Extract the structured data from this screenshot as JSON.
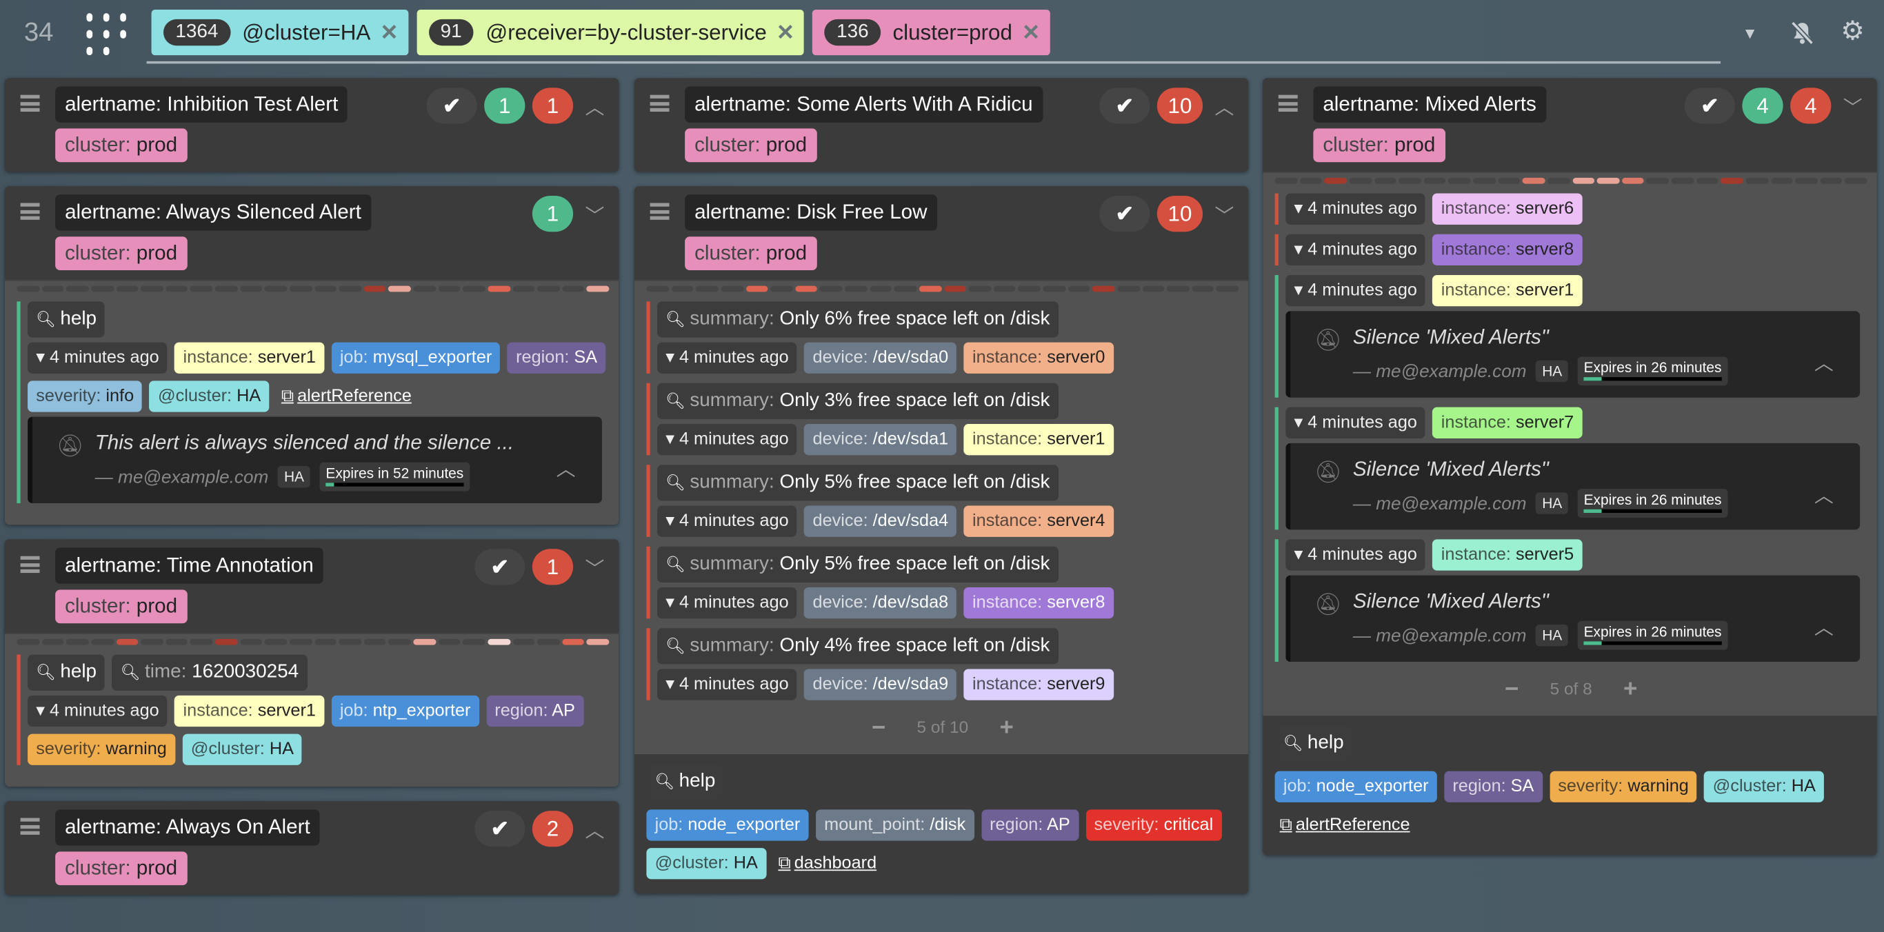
{
  "topbar": {
    "count": "34",
    "filters": [
      {
        "count": "1364",
        "text": "@cluster=HA",
        "color": "#8ddfe2"
      },
      {
        "count": "91",
        "text": "@receiver=by-cluster-service",
        "color": "#dcf7a6"
      },
      {
        "count": "136",
        "text": "cluster=prod",
        "color": "#e78fbb"
      }
    ],
    "icons": [
      "caret-down-icon",
      "bell-slash-icon",
      "gear-icon"
    ]
  },
  "colors": {
    "green": "#4fb98c",
    "red": "#d5503e",
    "default_strip": "#464646"
  },
  "columns": [
    [
      {
        "alertname": "alertname: Inhibition Test Alert",
        "label_key": "cluster:",
        "label_val": "prod",
        "check": true,
        "green": "1",
        "red": "1",
        "chevron": "up"
      },
      {
        "alertname": "alertname: Always Silenced Alert",
        "label_key": "cluster:",
        "label_val": "prod",
        "check": false,
        "green": "1",
        "chevron": "down",
        "strip": {
          "14": "#a33a2c",
          "15": "#e8a59a",
          "19": "#dc6450",
          "23": "#e8a59a"
        },
        "alerts": [
          {
            "state": "green",
            "annotations": [
              {
                "icon": "zoom-in",
                "key": "",
                "value": "help"
              }
            ],
            "time": "4 minutes ago",
            "labels": [
              {
                "k": "instance:",
                "v": "server1",
                "c": "#ffffbf"
              },
              {
                "k": "job:",
                "v": "mysql_exporter",
                "c": "#4a90d9",
                "t": "#fff"
              },
              {
                "k": "region:",
                "v": "SA",
                "c": "#6f6096",
                "t": "#fff"
              },
              {
                "k": "severity:",
                "v": "info",
                "c": "#8fbfdc"
              },
              {
                "k": "@cluster:",
                "v": "HA",
                "c": "#8ddfe2"
              }
            ],
            "links": [
              "alertReference"
            ],
            "silences": [
              {
                "comment": "This alert is always silenced and the silence ...",
                "author": "— me@example.com",
                "cluster": "HA",
                "expires": "Expires in 52 minutes",
                "progress": 0.06
              }
            ]
          }
        ]
      },
      {
        "alertname": "alertname: Time Annotation",
        "label_key": "cluster:",
        "label_val": "prod",
        "check": true,
        "red": "1",
        "chevron": "down",
        "strip": {
          "4": "#c9503e",
          "8": "#a33a2c",
          "16": "#e8a59a",
          "19": "#f3d8d4",
          "22": "#dc6450",
          "23": "#e8a59a"
        },
        "alerts": [
          {
            "state": "red",
            "annotations": [
              {
                "icon": "zoom-in",
                "key": "",
                "value": "help"
              },
              {
                "icon": "zoom-out",
                "key": "time:",
                "value": "1620030254"
              }
            ],
            "time": "4 minutes ago",
            "labels": [
              {
                "k": "instance:",
                "v": "server1",
                "c": "#ffffbf"
              },
              {
                "k": "job:",
                "v": "ntp_exporter",
                "c": "#4a90d9",
                "t": "#fff"
              },
              {
                "k": "region:",
                "v": "AP",
                "c": "#6f6096",
                "t": "#fff"
              },
              {
                "k": "severity:",
                "v": "warning",
                "c": "#f0ad4e"
              },
              {
                "k": "@cluster:",
                "v": "HA",
                "c": "#8ddfe2"
              }
            ]
          }
        ]
      },
      {
        "alertname": "alertname: Always On Alert",
        "label_key": "cluster:",
        "label_val": "prod",
        "check": true,
        "red": "2",
        "chevron": "up"
      }
    ],
    [
      {
        "alertname": "alertname: Some Alerts With A Ridicu",
        "label_key": "cluster:",
        "label_val": "prod",
        "check": true,
        "red": "10",
        "chevron": "up"
      },
      {
        "alertname": "alertname: Disk Free Low",
        "label_key": "cluster:",
        "label_val": "prod",
        "check": true,
        "red": "10",
        "chevron": "down",
        "strip": {
          "4": "#dc6450",
          "6": "#dc6450",
          "11": "#dc6450",
          "12": "#a33a2c",
          "18": "#a33a2c"
        },
        "alerts": [
          {
            "state": "red",
            "annotations": [
              {
                "icon": "zoom-out",
                "key": "summary:",
                "value": "Only 6% free space left on /disk"
              }
            ],
            "time": "4 minutes ago",
            "labels": [
              {
                "k": "device:",
                "v": "/dev/sda0",
                "c": "#6c7a89",
                "t": "#fff"
              },
              {
                "k": "instance:",
                "v": "server0",
                "c": "#f2b08a"
              }
            ]
          },
          {
            "state": "red",
            "annotations": [
              {
                "icon": "zoom-out",
                "key": "summary:",
                "value": "Only 3% free space left on /disk"
              }
            ],
            "time": "4 minutes ago",
            "labels": [
              {
                "k": "device:",
                "v": "/dev/sda1",
                "c": "#6c7a89",
                "t": "#fff"
              },
              {
                "k": "instance:",
                "v": "server1",
                "c": "#ffffbf"
              }
            ]
          },
          {
            "state": "red",
            "annotations": [
              {
                "icon": "zoom-out",
                "key": "summary:",
                "value": "Only 5% free space left on /disk"
              }
            ],
            "time": "4 minutes ago",
            "labels": [
              {
                "k": "device:",
                "v": "/dev/sda4",
                "c": "#6c7a89",
                "t": "#fff"
              },
              {
                "k": "instance:",
                "v": "server4",
                "c": "#f2b08a"
              }
            ]
          },
          {
            "state": "red",
            "annotations": [
              {
                "icon": "zoom-out",
                "key": "summary:",
                "value": "Only 5% free space left on /disk"
              }
            ],
            "time": "4 minutes ago",
            "labels": [
              {
                "k": "device:",
                "v": "/dev/sda8",
                "c": "#6c7a89",
                "t": "#fff"
              },
              {
                "k": "instance:",
                "v": "server8",
                "c": "#a078d8",
                "t": "#fff"
              }
            ]
          },
          {
            "state": "red",
            "annotations": [
              {
                "icon": "zoom-out",
                "key": "summary:",
                "value": "Only 4% free space left on /disk"
              }
            ],
            "time": "4 minutes ago",
            "labels": [
              {
                "k": "device:",
                "v": "/dev/sda9",
                "c": "#6c7a89",
                "t": "#fff"
              },
              {
                "k": "instance:",
                "v": "server9",
                "c": "#dcd0ff"
              }
            ]
          }
        ],
        "pagination": "5 of 10",
        "footer": {
          "annotations": [
            {
              "icon": "zoom-in",
              "key": "",
              "value": "help"
            }
          ],
          "labels": [
            {
              "k": "job:",
              "v": "node_exporter",
              "c": "#4a90d9",
              "t": "#fff"
            },
            {
              "k": "mount_point:",
              "v": "/disk",
              "c": "#6c7a89",
              "t": "#fff"
            },
            {
              "k": "region:",
              "v": "AP",
              "c": "#6f6096",
              "t": "#fff"
            },
            {
              "k": "severity:",
              "v": "critical",
              "c": "#e3322b",
              "t": "#fff"
            },
            {
              "k": "@cluster:",
              "v": "HA",
              "c": "#8ddfe2"
            }
          ],
          "links": [
            "dashboard"
          ]
        }
      }
    ],
    [
      {
        "alertname": "alertname: Mixed Alerts",
        "label_key": "cluster:",
        "label_val": "prod",
        "check": true,
        "green": "4",
        "red": "4",
        "chevron": "down",
        "strip": {
          "2": "#a33a2c",
          "10": "#dc7a6a",
          "12": "#e8a59a",
          "13": "#e8a59a",
          "14": "#dc7a6a",
          "18": "#a33a2c"
        },
        "alerts": [
          {
            "state": "red",
            "time": "4 minutes ago",
            "labels": [
              {
                "k": "instance:",
                "v": "server6",
                "c": "#ecc0f5"
              }
            ]
          },
          {
            "state": "red",
            "time": "4 minutes ago",
            "labels": [
              {
                "k": "instance:",
                "v": "server8",
                "c": "#a078d8"
              }
            ]
          },
          {
            "state": "green",
            "time": "4 minutes ago",
            "labels": [
              {
                "k": "instance:",
                "v": "server1",
                "c": "#ffffbf"
              }
            ],
            "silences": [
              {
                "comment": "Silence 'Mixed Alerts''",
                "author": "— me@example.com",
                "cluster": "HA",
                "expires": "Expires in 26 minutes",
                "progress": 0.13
              }
            ]
          },
          {
            "state": "green",
            "time": "4 minutes ago",
            "labels": [
              {
                "k": "instance:",
                "v": "server7",
                "c": "#a5f58a"
              }
            ],
            "silences": [
              {
                "comment": "Silence 'Mixed Alerts''",
                "author": "— me@example.com",
                "cluster": "HA",
                "expires": "Expires in 26 minutes",
                "progress": 0.13
              }
            ]
          },
          {
            "state": "green",
            "time": "4 minutes ago",
            "labels": [
              {
                "k": "instance:",
                "v": "server5",
                "c": "#9af0d0"
              }
            ],
            "silences": [
              {
                "comment": "Silence 'Mixed Alerts''",
                "author": "— me@example.com",
                "cluster": "HA",
                "expires": "Expires in 26 minutes",
                "progress": 0.13
              }
            ]
          }
        ],
        "pagination": "5 of 8",
        "footer": {
          "annotations": [
            {
              "icon": "zoom-in",
              "key": "",
              "value": "help"
            }
          ],
          "labels": [
            {
              "k": "job:",
              "v": "node_exporter",
              "c": "#4a90d9",
              "t": "#fff"
            },
            {
              "k": "region:",
              "v": "SA",
              "c": "#6f6096",
              "t": "#fff"
            },
            {
              "k": "severity:",
              "v": "warning",
              "c": "#f0ad4e"
            },
            {
              "k": "@cluster:",
              "v": "HA",
              "c": "#8ddfe2"
            }
          ],
          "links": [
            "alertReference"
          ]
        }
      }
    ]
  ]
}
